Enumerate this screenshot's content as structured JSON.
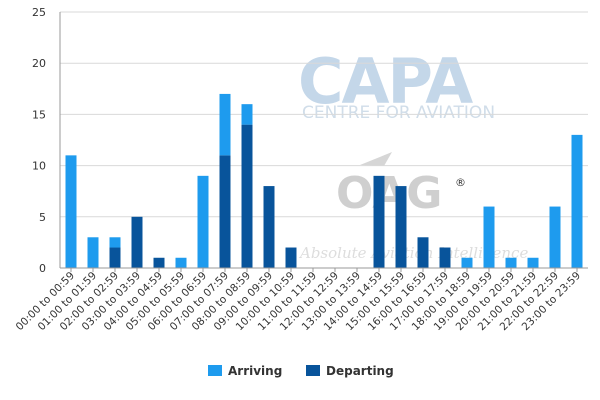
{
  "watermarks": {
    "capa": "CAPA",
    "centre": "CENTRE FOR AVIATION",
    "oag": "OAG",
    "oag_reg": "®",
    "absolute": "Absolute Aviation Intelligence"
  },
  "colors": {
    "arriving": "#1e9bee",
    "departing": "#08549b",
    "grid": "#d9d9d9",
    "axis": "#999999"
  },
  "chart_data": {
    "type": "bar",
    "stacked": true,
    "categories": [
      "00:00 to 00:59",
      "01:00 to 01:59",
      "02:00 to 02:59",
      "03:00 to 03:59",
      "04:00 to 04:59",
      "05:00 to 05:59",
      "06:00 to 06:59",
      "07:00 to 07:59",
      "08:00 to 08:59",
      "09:00 to 09:59",
      "10:00 to 10:59",
      "11:00 to 11:59",
      "12:00 to 12:59",
      "13:00 to 13:59",
      "14:00 to 14:59",
      "15:00 to 15:59",
      "16:00 to 16:59",
      "17:00 to 17:59",
      "18:00 to 18:59",
      "19:00 to 19:59",
      "20:00 to 20:59",
      "21:00 to 21:59",
      "22:00 to 22:59",
      "23:00 to 23:59"
    ],
    "series": [
      {
        "name": "Arriving",
        "values": [
          11,
          3,
          1,
          0,
          0,
          1,
          9,
          6,
          2,
          0,
          0,
          0,
          0,
          0,
          0,
          0,
          0,
          0,
          1,
          6,
          1,
          1,
          6,
          13
        ]
      },
      {
        "name": "Departing",
        "values": [
          0,
          0,
          2,
          5,
          1,
          0,
          0,
          11,
          14,
          8,
          2,
          0,
          0,
          0,
          9,
          8,
          3,
          2,
          0,
          0,
          0,
          0,
          0,
          0
        ]
      }
    ],
    "bar_layout": {
      "Arriving": "left",
      "Departing": "right",
      "overlap_at_zero": "full-width"
    },
    "yticks": [
      0,
      5,
      10,
      15,
      20,
      25
    ],
    "ylim": [
      0,
      25
    ],
    "xlabel": "",
    "ylabel": "",
    "grid": true,
    "legend_position": "bottom"
  }
}
